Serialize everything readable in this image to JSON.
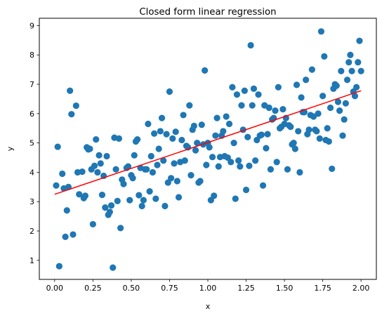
{
  "chart_data": {
    "type": "scatter",
    "title": "Closed form linear regression",
    "xlabel": "x",
    "ylabel": "y",
    "xlim": [
      -0.1,
      2.1
    ],
    "ylim": [
      0.35,
      9.25
    ],
    "xticks": [
      0.0,
      0.25,
      0.5,
      0.75,
      1.0,
      1.25,
      1.5,
      1.75,
      2.0
    ],
    "xtick_labels": [
      "0.00",
      "0.25",
      "0.50",
      "0.75",
      "1.00",
      "1.25",
      "1.50",
      "1.75",
      "2.00"
    ],
    "yticks": [
      1,
      2,
      3,
      4,
      5,
      6,
      7,
      8,
      9
    ],
    "ytick_labels": [
      "1",
      "2",
      "3",
      "4",
      "5",
      "6",
      "7",
      "8",
      "9"
    ],
    "grid": false,
    "legend": "none",
    "series": [
      {
        "kind": "scatter",
        "color": "#1f77b4",
        "points": [
          [
            0.01,
            3.55
          ],
          [
            0.02,
            4.87
          ],
          [
            0.03,
            0.8
          ],
          [
            0.05,
            3.95
          ],
          [
            0.06,
            3.45
          ],
          [
            0.07,
            1.8
          ],
          [
            0.08,
            2.7
          ],
          [
            0.09,
            3.5
          ],
          [
            0.1,
            6.78
          ],
          [
            0.11,
            5.98
          ],
          [
            0.12,
            1.88
          ],
          [
            0.14,
            6.27
          ],
          [
            0.15,
            4.0
          ],
          [
            0.16,
            3.25
          ],
          [
            0.18,
            4.02
          ],
          [
            0.19,
            3.12
          ],
          [
            0.2,
            3.2
          ],
          [
            0.21,
            4.85
          ],
          [
            0.22,
            4.78
          ],
          [
            0.23,
            4.8
          ],
          [
            0.24,
            4.1
          ],
          [
            0.25,
            2.23
          ],
          [
            0.26,
            4.22
          ],
          [
            0.27,
            5.12
          ],
          [
            0.28,
            4.0
          ],
          [
            0.29,
            4.58
          ],
          [
            0.3,
            4.3
          ],
          [
            0.31,
            3.23
          ],
          [
            0.32,
            3.88
          ],
          [
            0.33,
            2.8
          ],
          [
            0.34,
            4.55
          ],
          [
            0.35,
            2.55
          ],
          [
            0.36,
            2.65
          ],
          [
            0.37,
            2.87
          ],
          [
            0.38,
            0.75
          ],
          [
            0.39,
            5.18
          ],
          [
            0.4,
            4.1
          ],
          [
            0.41,
            3.02
          ],
          [
            0.42,
            5.15
          ],
          [
            0.43,
            2.1
          ],
          [
            0.44,
            3.75
          ],
          [
            0.45,
            3.6
          ],
          [
            0.47,
            4.15
          ],
          [
            0.48,
            4.2
          ],
          [
            0.49,
            3.05
          ],
          [
            0.5,
            3.9
          ],
          [
            0.51,
            3.8
          ],
          [
            0.52,
            4.58
          ],
          [
            0.53,
            5.05
          ],
          [
            0.54,
            5.12
          ],
          [
            0.55,
            3.22
          ],
          [
            0.56,
            4.15
          ],
          [
            0.57,
            2.85
          ],
          [
            0.58,
            3.05
          ],
          [
            0.59,
            4.1
          ],
          [
            0.6,
            4.1
          ],
          [
            0.61,
            5.65
          ],
          [
            0.62,
            3.35
          ],
          [
            0.63,
            4.55
          ],
          [
            0.64,
            4.0
          ],
          [
            0.65,
            5.32
          ],
          [
            0.66,
            3.1
          ],
          [
            0.67,
            4.25
          ],
          [
            0.68,
            4.8
          ],
          [
            0.69,
            5.4
          ],
          [
            0.7,
            5.85
          ],
          [
            0.71,
            4.4
          ],
          [
            0.72,
            2.85
          ],
          [
            0.73,
            5.3
          ],
          [
            0.74,
            3.65
          ],
          [
            0.75,
            6.75
          ],
          [
            0.76,
            3.8
          ],
          [
            0.77,
            5.15
          ],
          [
            0.78,
            4.3
          ],
          [
            0.79,
            5.38
          ],
          [
            0.8,
            3.7
          ],
          [
            0.81,
            3.15
          ],
          [
            0.82,
            4.35
          ],
          [
            0.83,
            5.1
          ],
          [
            0.84,
            5.95
          ],
          [
            0.85,
            4.4
          ],
          [
            0.86,
            4.9
          ],
          [
            0.87,
            4.85
          ],
          [
            0.88,
            6.28
          ],
          [
            0.89,
            3.9
          ],
          [
            0.9,
            5.45
          ],
          [
            0.91,
            5.58
          ],
          [
            0.92,
            4.75
          ],
          [
            0.93,
            5.0
          ],
          [
            0.94,
            3.65
          ],
          [
            0.95,
            3.7
          ],
          [
            0.96,
            5.62
          ],
          [
            0.97,
            4.95
          ],
          [
            0.98,
            7.47
          ],
          [
            0.99,
            4.25
          ],
          [
            1.0,
            5.0
          ],
          [
            1.01,
            4.85
          ],
          [
            1.02,
            3.05
          ],
          [
            1.03,
            4.52
          ],
          [
            1.04,
            3.2
          ],
          [
            1.05,
            5.25
          ],
          [
            1.06,
            5.85
          ],
          [
            1.07,
            4.2
          ],
          [
            1.08,
            4.52
          ],
          [
            1.09,
            5.25
          ],
          [
            1.1,
            5.4
          ],
          [
            1.11,
            4.55
          ],
          [
            1.12,
            5.9
          ],
          [
            1.13,
            4.5
          ],
          [
            1.14,
            5.65
          ],
          [
            1.15,
            4.35
          ],
          [
            1.16,
            6.9
          ],
          [
            1.17,
            5.0
          ],
          [
            1.18,
            3.1
          ],
          [
            1.19,
            6.65
          ],
          [
            1.2,
            4.4
          ],
          [
            1.21,
            4.2
          ],
          [
            1.22,
            6.28
          ],
          [
            1.23,
            5.45
          ],
          [
            1.24,
            6.78
          ],
          [
            1.25,
            3.4
          ],
          [
            1.26,
            5.2
          ],
          [
            1.27,
            4.22
          ],
          [
            1.28,
            8.33
          ],
          [
            1.29,
            6.28
          ],
          [
            1.3,
            6.85
          ],
          [
            1.31,
            4.4
          ],
          [
            1.32,
            5.1
          ],
          [
            1.33,
            6.65
          ],
          [
            1.34,
            5.25
          ],
          [
            1.35,
            5.28
          ],
          [
            1.36,
            3.55
          ],
          [
            1.37,
            6.28
          ],
          [
            1.38,
            4.82
          ],
          [
            1.39,
            5.3
          ],
          [
            1.4,
            6.2
          ],
          [
            1.41,
            4.1
          ],
          [
            1.42,
            5.8
          ],
          [
            1.43,
            5.85
          ],
          [
            1.44,
            6.1
          ],
          [
            1.45,
            4.35
          ],
          [
            1.46,
            6.9
          ],
          [
            1.47,
            5.5
          ],
          [
            1.48,
            5.55
          ],
          [
            1.49,
            6.15
          ],
          [
            1.5,
            5.65
          ],
          [
            1.51,
            5.85
          ],
          [
            1.52,
            4.1
          ],
          [
            1.53,
            5.6
          ],
          [
            1.54,
            5.55
          ],
          [
            1.55,
            4.95
          ],
          [
            1.56,
            5.0
          ],
          [
            1.57,
            4.8
          ],
          [
            1.58,
            6.98
          ],
          [
            1.59,
            5.4
          ],
          [
            1.6,
            4.0
          ],
          [
            1.61,
            6.55
          ],
          [
            1.62,
            6.05
          ],
          [
            1.63,
            6.05
          ],
          [
            1.64,
            7.15
          ],
          [
            1.65,
            5.3
          ],
          [
            1.66,
            5.45
          ],
          [
            1.67,
            5.95
          ],
          [
            1.68,
            7.5
          ],
          [
            1.69,
            5.9
          ],
          [
            1.7,
            5.45
          ],
          [
            1.71,
            5.4
          ],
          [
            1.72,
            6.0
          ],
          [
            1.73,
            5.15
          ],
          [
            1.74,
            8.8
          ],
          [
            1.75,
            6.6
          ],
          [
            1.76,
            7.95
          ],
          [
            1.77,
            5.1
          ],
          [
            1.78,
            5.5
          ],
          [
            1.79,
            5.05
          ],
          [
            1.8,
            6.2
          ],
          [
            1.81,
            4.12
          ],
          [
            1.82,
            6.85
          ],
          [
            1.83,
            7.0
          ],
          [
            1.84,
            6.95
          ],
          [
            1.85,
            6.4
          ],
          [
            1.86,
            6.1
          ],
          [
            1.87,
            7.45
          ],
          [
            1.88,
            5.25
          ],
          [
            1.89,
            5.8
          ],
          [
            1.9,
            6.35
          ],
          [
            1.91,
            7.15
          ],
          [
            1.92,
            7.75
          ],
          [
            1.93,
            8.0
          ],
          [
            1.94,
            7.45
          ],
          [
            1.95,
            6.75
          ],
          [
            1.96,
            6.6
          ],
          [
            1.97,
            6.9
          ],
          [
            1.98,
            7.75
          ],
          [
            1.99,
            8.48
          ],
          [
            2.0,
            7.45
          ]
        ]
      },
      {
        "kind": "line",
        "color": "#ff0000",
        "points": [
          [
            0.0,
            3.25
          ],
          [
            2.0,
            6.78
          ]
        ]
      }
    ]
  }
}
